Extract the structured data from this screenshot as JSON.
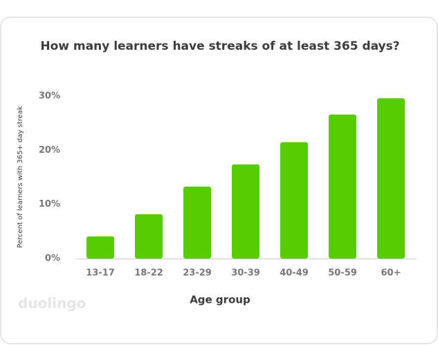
{
  "chart_data": {
    "type": "bar",
    "title": "How many learners have streaks of at least 365 days?",
    "x_label": "Age group",
    "y_label": "Percent of learners with 365+ day streak",
    "watermark": "duolingo",
    "categories": [
      "13-17",
      "18-22",
      "23-29",
      "30-39",
      "40-49",
      "50-59",
      "60+"
    ],
    "values": [
      4.1,
      8.2,
      13.3,
      17.4,
      21.5,
      26.6,
      29.6
    ],
    "color": "#58cc02",
    "ylim": [
      0,
      30
    ],
    "yticks": [
      {
        "value": 0,
        "label": "0%"
      },
      {
        "value": 10,
        "label": "10%"
      },
      {
        "value": 20,
        "label": "20%"
      },
      {
        "value": 30,
        "label": "30%"
      }
    ],
    "grid": false
  }
}
